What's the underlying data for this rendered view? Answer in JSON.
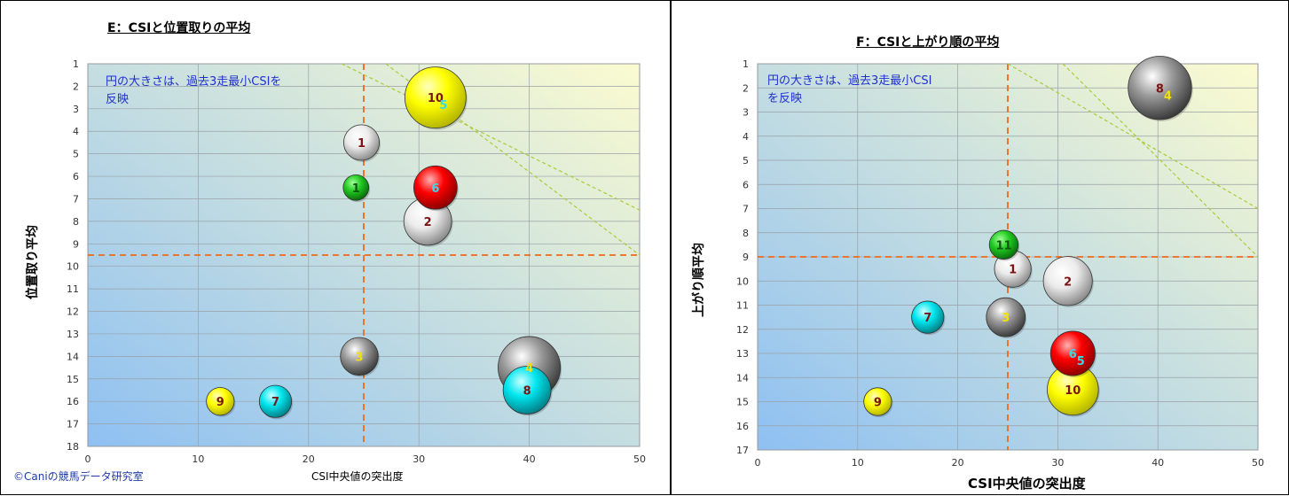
{
  "charts": [
    {
      "id": "e",
      "title": "E：CSIと位置取りの平均",
      "xlabel": "CSI中央値の突出度",
      "ylabel": "位置取り平均",
      "note_lines": [
        "円の大きさは、過去3走最小CSIを",
        "反映"
      ],
      "copyright": "©Caniの競馬データ研究室"
    },
    {
      "id": "f",
      "title": "F：CSIと上がり順の平均",
      "xlabel": "CSI中央値の突出度",
      "ylabel": "上がり順平均",
      "note_lines": [
        "円の大きさは、過去3走最小CSI",
        "を反映"
      ]
    }
  ],
  "colors": {
    "guide_line": "#ee6a1a",
    "diag_line": "#a8cc3a",
    "label_dark": "#7a1414",
    "label_cyan": "#3ad8e8",
    "label_yellow": "#f3e100",
    "label_green": "#115511",
    "bg_top_right": "#fbfbd0",
    "bg_bottom_left": "#8ec0f2"
  },
  "chart_data": [
    {
      "type": "scatter",
      "subtype": "bubble",
      "title": "E：CSIと位置取りの平均",
      "xlabel": "CSI中央値の突出度",
      "ylabel": "位置取り平均",
      "xlim": [
        0,
        50
      ],
      "ylim": [
        1,
        18
      ],
      "y_inverted": true,
      "xticks": [
        "0",
        "10",
        "20",
        "30",
        "40",
        "50"
      ],
      "yticks": [
        "1",
        "2",
        "3",
        "4",
        "5",
        "6",
        "7",
        "8",
        "9",
        "10",
        "11",
        "12",
        "13",
        "14",
        "15",
        "16",
        "17",
        "18"
      ],
      "grid": true,
      "threshold_x": 25,
      "threshold_y": 9.5,
      "diagonals": [
        {
          "x1": 23,
          "y1": 1,
          "x2": 50,
          "y2": 7.5
        },
        {
          "x1": 27,
          "y1": 1,
          "x2": 50,
          "y2": 9.5
        }
      ],
      "points": [
        {
          "label": "10",
          "x": 31.5,
          "y": 2.5,
          "size": 5.5,
          "color": "yellow",
          "label_color": "dark"
        },
        {
          "label": "5",
          "x": 31.5,
          "y": 2.5,
          "size": 5.5,
          "color": "yellow",
          "label_color": "cyan",
          "overlay": true
        },
        {
          "label": "1",
          "x": 24.8,
          "y": 4.5,
          "size": 3.2,
          "color": "white",
          "label_color": "dark"
        },
        {
          "label": "1",
          "x": 24.3,
          "y": 6.5,
          "size": 2.3,
          "color": "green",
          "label_color": "green"
        },
        {
          "label": "6",
          "x": 31.5,
          "y": 6.5,
          "size": 3.9,
          "color": "red",
          "label_color": "cyan"
        },
        {
          "label": "2",
          "x": 30.8,
          "y": 8,
          "size": 4.3,
          "color": "white",
          "label_color": "dark"
        },
        {
          "label": "3",
          "x": 24.6,
          "y": 14,
          "size": 3.4,
          "color": "gray",
          "label_color": "yellow"
        },
        {
          "label": "4",
          "x": 40,
          "y": 14.5,
          "size": 5.6,
          "color": "gray",
          "label_color": "yellow"
        },
        {
          "label": "8",
          "x": 39.8,
          "y": 15.5,
          "size": 4.3,
          "color": "cyan",
          "label_color": "dark"
        },
        {
          "label": "9",
          "x": 12,
          "y": 16,
          "size": 2.5,
          "color": "yellow",
          "label_color": "dark"
        },
        {
          "label": "7",
          "x": 17,
          "y": 16,
          "size": 2.9,
          "color": "cyan",
          "label_color": "dark"
        }
      ]
    },
    {
      "type": "scatter",
      "subtype": "bubble",
      "title": "F：CSIと上がり順の平均",
      "xlabel": "CSI中央値の突出度",
      "ylabel": "上がり順平均",
      "xlim": [
        0,
        50
      ],
      "ylim": [
        1,
        17
      ],
      "y_inverted": true,
      "xticks": [
        "0",
        "10",
        "20",
        "30",
        "40",
        "50"
      ],
      "yticks": [
        "1",
        "2",
        "3",
        "4",
        "5",
        "6",
        "7",
        "8",
        "9",
        "10",
        "11",
        "12",
        "13",
        "14",
        "15",
        "16",
        "17"
      ],
      "grid": true,
      "threshold_x": 25,
      "threshold_y": 9,
      "diagonals": [
        {
          "x1": 25,
          "y1": 1,
          "x2": 50,
          "y2": 7
        },
        {
          "x1": 30.5,
          "y1": 1,
          "x2": 50,
          "y2": 9
        }
      ],
      "points": [
        {
          "label": "8",
          "x": 40.2,
          "y": 2,
          "size": 5.7,
          "color": "gray",
          "label_color": "dark"
        },
        {
          "label": "4",
          "x": 40.2,
          "y": 2,
          "size": 5.2,
          "color": "cyan",
          "label_color": "yellow",
          "overlay": true
        },
        {
          "label": "11",
          "x": 24.6,
          "y": 8.5,
          "size": 2.6,
          "color": "green",
          "label_color": "green"
        },
        {
          "label": "1",
          "x": 25.5,
          "y": 9.5,
          "size": 3.3,
          "color": "white",
          "label_color": "dark"
        },
        {
          "label": "2",
          "x": 31,
          "y": 10,
          "size": 4.4,
          "color": "white",
          "label_color": "dark"
        },
        {
          "label": "7",
          "x": 17,
          "y": 11.5,
          "size": 2.9,
          "color": "cyan",
          "label_color": "dark"
        },
        {
          "label": "3",
          "x": 24.8,
          "y": 11.5,
          "size": 3.5,
          "color": "gray",
          "label_color": "yellow"
        },
        {
          "label": "6",
          "x": 31.5,
          "y": 13,
          "size": 4,
          "color": "red",
          "label_color": "cyan"
        },
        {
          "label": "5",
          "x": 31.5,
          "y": 13,
          "size": 4,
          "color": "red",
          "label_color": "cyan",
          "overlay": true
        },
        {
          "label": "10",
          "x": 31.5,
          "y": 14.5,
          "size": 4.6,
          "color": "yellow",
          "label_color": "dark"
        },
        {
          "label": "9",
          "x": 12,
          "y": 15,
          "size": 2.5,
          "color": "yellow",
          "label_color": "dark"
        }
      ]
    }
  ]
}
